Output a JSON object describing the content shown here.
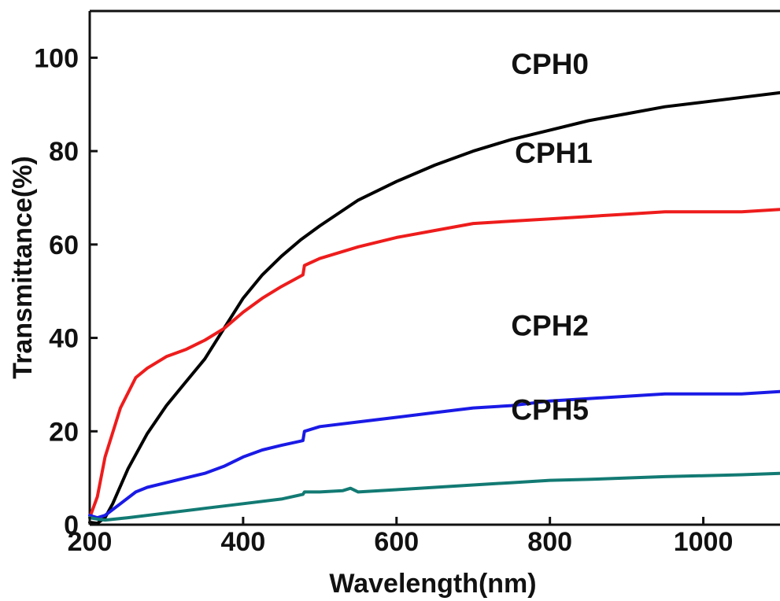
{
  "chart_data": {
    "type": "line",
    "title": "",
    "xlabel": "Wavelength(nm)",
    "ylabel": "Transmittance(%)",
    "xlim": [
      200,
      1100
    ],
    "ylim": [
      0,
      110
    ],
    "xticks": [
      200,
      400,
      600,
      800,
      1000
    ],
    "yticks": [
      0,
      20,
      40,
      60,
      80,
      100
    ],
    "xtick_labels": [
      "200",
      "400",
      "600",
      "800",
      "1000"
    ],
    "ytick_labels": [
      "0",
      "20",
      "40",
      "60",
      "80",
      "100"
    ],
    "grid": false,
    "legend": "none (series labelled directly on plot)",
    "series": [
      {
        "name": "CPH0",
        "color": "#000000",
        "label_at": [
          800,
          96.5
        ],
        "x": [
          200,
          210,
          220,
          230,
          250,
          275,
          300,
          325,
          350,
          375,
          400,
          425,
          450,
          475,
          500,
          550,
          600,
          650,
          700,
          750,
          800,
          850,
          900,
          950,
          1000,
          1050,
          1100
        ],
        "y": [
          0.5,
          0.3,
          1.5,
          4.5,
          12,
          19.5,
          25.5,
          30.5,
          35.5,
          42,
          48.5,
          53.5,
          57.5,
          61,
          64,
          69.5,
          73.5,
          77,
          80,
          82.5,
          84.5,
          86.5,
          88,
          89.5,
          90.5,
          91.5,
          92.5
        ]
      },
      {
        "name": "CPH1",
        "color": "#ee1c1c",
        "label_at": [
          805,
          77.5
        ],
        "x": [
          200,
          210,
          220,
          240,
          260,
          275,
          300,
          325,
          350,
          375,
          400,
          425,
          450,
          478,
          480,
          500,
          550,
          600,
          650,
          700,
          750,
          800,
          850,
          900,
          950,
          1000,
          1050,
          1100
        ],
        "y": [
          1.5,
          6,
          14.5,
          25,
          31.5,
          33.5,
          36,
          37.5,
          39.5,
          42,
          45.5,
          48.5,
          51,
          53.5,
          55.5,
          57,
          59.5,
          61.5,
          63,
          64.5,
          65,
          65.5,
          66,
          66.5,
          67,
          67,
          67,
          67.5
        ]
      },
      {
        "name": "CPH2",
        "color": "#1a1ae6",
        "label_at": [
          800,
          40.5
        ],
        "x": [
          200,
          210,
          220,
          240,
          260,
          275,
          300,
          325,
          350,
          375,
          400,
          425,
          450,
          478,
          480,
          500,
          550,
          600,
          650,
          700,
          750,
          800,
          850,
          900,
          950,
          1000,
          1050,
          1100
        ],
        "y": [
          2,
          1.5,
          2,
          4.5,
          7,
          8,
          9,
          10,
          11,
          12.5,
          14.5,
          16,
          17,
          18,
          20,
          21,
          22,
          23,
          24,
          25,
          25.5,
          26.5,
          27,
          27.5,
          28,
          28,
          28,
          28.5
        ]
      },
      {
        "name": "CPH5",
        "color": "#127a73",
        "label_at": [
          800,
          22.5
        ],
        "x": [
          200,
          210,
          220,
          250,
          300,
          350,
          400,
          450,
          478,
          480,
          500,
          530,
          540,
          550,
          600,
          650,
          700,
          750,
          800,
          850,
          900,
          950,
          1000,
          1050,
          1100
        ],
        "y": [
          1.5,
          1.2,
          1,
          1.5,
          2.5,
          3.5,
          4.5,
          5.5,
          6.5,
          7,
          7,
          7.3,
          7.8,
          7,
          7.5,
          8,
          8.5,
          9,
          9.5,
          9.7,
          10,
          10.3,
          10.5,
          10.7,
          11
        ]
      }
    ]
  }
}
